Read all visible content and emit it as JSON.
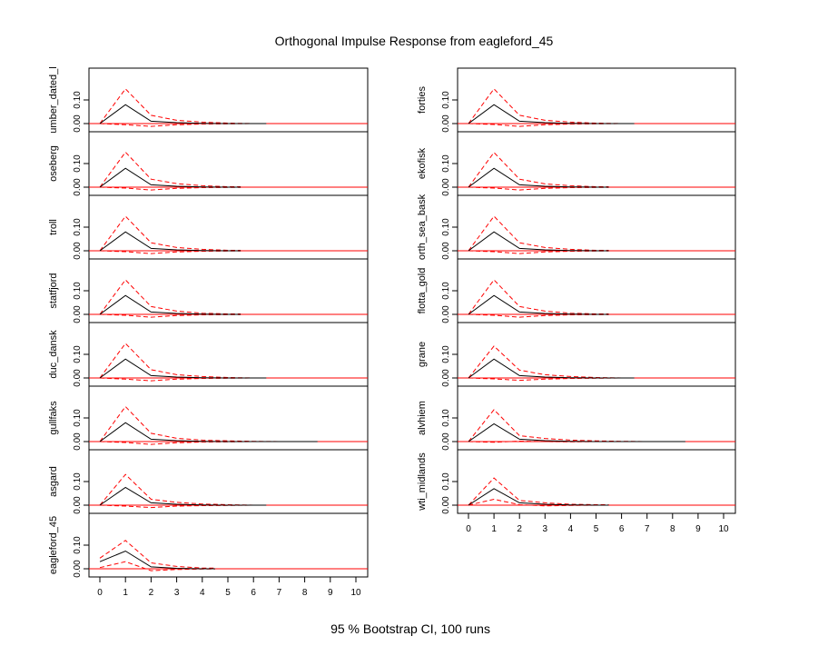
{
  "chart_data": {
    "type": "line",
    "title": "Orthogonal Impulse Response from eagleford_45",
    "xlabel": "95 % Bootstrap CI,  100 runs",
    "x_ticks": [
      "0",
      "1",
      "2",
      "3",
      "4",
      "5",
      "6",
      "7",
      "8",
      "9",
      "10"
    ],
    "y_ticks": [
      "0.00",
      "0.10"
    ],
    "xlim": [
      0,
      10
    ],
    "ylim": [
      -0.02,
      0.165
    ],
    "colors": {
      "response": "#000000",
      "ci": "#ff0000",
      "zero": "#ff0000",
      "axis": "#000000"
    },
    "panels": [
      {
        "name": "umber_dated_l",
        "column": 0,
        "response": [
          0,
          0.08,
          0.01,
          0.004,
          0.001,
          0,
          0,
          0,
          0,
          0,
          0
        ],
        "upper": [
          0,
          0.147,
          0.035,
          0.014,
          0.006,
          0.002,
          0,
          0,
          0,
          0,
          0
        ],
        "lower": [
          0,
          -0.005,
          -0.012,
          -0.005,
          -0.002,
          -0.001,
          0,
          0,
          0,
          0,
          0
        ],
        "extent": 6.5
      },
      {
        "name": "oseberg",
        "column": 0,
        "response": [
          0,
          0.08,
          0.01,
          0.004,
          0.001,
          0,
          0,
          0,
          0,
          0,
          0
        ],
        "upper": [
          0,
          0.148,
          0.034,
          0.015,
          0.006,
          0.002,
          0,
          0,
          0,
          0,
          0
        ],
        "lower": [
          0,
          -0.004,
          -0.012,
          -0.005,
          -0.002,
          -0.001,
          0,
          0,
          0,
          0,
          0
        ],
        "extent": 5.5
      },
      {
        "name": "troll",
        "column": 0,
        "response": [
          0,
          0.08,
          0.01,
          0.004,
          0.001,
          0,
          0,
          0,
          0,
          0,
          0
        ],
        "upper": [
          0,
          0.146,
          0.034,
          0.014,
          0.006,
          0.002,
          0,
          0,
          0,
          0,
          0
        ],
        "lower": [
          0,
          -0.004,
          -0.012,
          -0.005,
          -0.002,
          -0.001,
          0,
          0,
          0,
          0,
          0
        ],
        "extent": 5.5
      },
      {
        "name": "statfjord",
        "column": 0,
        "response": [
          0,
          0.08,
          0.01,
          0.004,
          0.001,
          0,
          0,
          0,
          0,
          0,
          0
        ],
        "upper": [
          0,
          0.146,
          0.033,
          0.014,
          0.005,
          0.002,
          0,
          0,
          0,
          0,
          0
        ],
        "lower": [
          0,
          -0.004,
          -0.012,
          -0.005,
          -0.002,
          -0.001,
          0,
          0,
          0,
          0,
          0
        ],
        "extent": 5.5
      },
      {
        "name": "duc_dansk",
        "column": 0,
        "response": [
          0,
          0.08,
          0.01,
          0.004,
          0.001,
          0,
          0,
          0,
          0,
          0,
          0
        ],
        "upper": [
          0,
          0.146,
          0.035,
          0.014,
          0.006,
          0.002,
          0,
          0,
          0,
          0,
          0
        ],
        "lower": [
          0,
          -0.005,
          -0.012,
          -0.005,
          -0.002,
          -0.001,
          0,
          0,
          0,
          0,
          0
        ],
        "extent": 6.5
      },
      {
        "name": "gullfaks",
        "column": 0,
        "response": [
          0,
          0.08,
          0.01,
          0.004,
          0.001,
          0,
          0,
          0,
          0,
          0,
          0
        ],
        "upper": [
          0,
          0.148,
          0.035,
          0.014,
          0.006,
          0.003,
          0.001,
          0,
          0,
          0,
          0
        ],
        "lower": [
          0,
          -0.004,
          -0.012,
          -0.005,
          -0.002,
          -0.001,
          0,
          0,
          0,
          0,
          0
        ],
        "extent": 8.5
      },
      {
        "name": "asgard",
        "column": 0,
        "response": [
          0,
          0.075,
          0.01,
          0.004,
          0.001,
          0,
          0,
          0,
          0,
          0,
          0
        ],
        "upper": [
          0,
          0.13,
          0.025,
          0.012,
          0.005,
          0.002,
          0,
          0,
          0,
          0,
          0
        ],
        "lower": [
          0,
          -0.004,
          -0.01,
          -0.004,
          -0.002,
          -0.001,
          0,
          0,
          0,
          0,
          0
        ],
        "extent": 6.5
      },
      {
        "name": "eagleford_45",
        "column": 0,
        "response": [
          0.03,
          0.075,
          0.008,
          0.002,
          0,
          0,
          0,
          0,
          0,
          0,
          0
        ],
        "upper": [
          0.045,
          0.12,
          0.025,
          0.01,
          0.003,
          0.001,
          0,
          0,
          0,
          0,
          0
        ],
        "lower": [
          0.005,
          0.03,
          -0.008,
          -0.003,
          -0.001,
          0,
          0,
          0,
          0,
          0,
          0
        ],
        "extent": 4.5
      },
      {
        "name": "forties",
        "column": 1,
        "response": [
          0,
          0.08,
          0.01,
          0.004,
          0.001,
          0,
          0,
          0,
          0,
          0,
          0
        ],
        "upper": [
          0,
          0.147,
          0.035,
          0.014,
          0.006,
          0.002,
          0,
          0,
          0,
          0,
          0
        ],
        "lower": [
          0,
          -0.004,
          -0.012,
          -0.005,
          -0.002,
          -0.001,
          0,
          0,
          0,
          0,
          0
        ],
        "extent": 6.5
      },
      {
        "name": "ekofisk",
        "column": 1,
        "response": [
          0,
          0.08,
          0.01,
          0.004,
          0.001,
          0,
          0,
          0,
          0,
          0,
          0
        ],
        "upper": [
          0,
          0.147,
          0.034,
          0.014,
          0.006,
          0.002,
          0,
          0,
          0,
          0,
          0
        ],
        "lower": [
          0,
          -0.004,
          -0.012,
          -0.005,
          -0.002,
          -0.001,
          0,
          0,
          0,
          0,
          0
        ],
        "extent": 5.5
      },
      {
        "name": "orth_sea_bask",
        "column": 1,
        "response": [
          0,
          0.08,
          0.01,
          0.004,
          0.001,
          0,
          0,
          0,
          0,
          0,
          0
        ],
        "upper": [
          0,
          0.146,
          0.034,
          0.014,
          0.006,
          0.002,
          0,
          0,
          0,
          0,
          0
        ],
        "lower": [
          0,
          -0.004,
          -0.012,
          -0.005,
          -0.002,
          -0.001,
          0,
          0,
          0,
          0,
          0
        ],
        "extent": 5.5
      },
      {
        "name": "flotta_gold",
        "column": 1,
        "response": [
          0,
          0.08,
          0.01,
          0.004,
          0.001,
          0,
          0,
          0,
          0,
          0,
          0
        ],
        "upper": [
          0,
          0.146,
          0.033,
          0.014,
          0.005,
          0.002,
          0,
          0,
          0,
          0,
          0
        ],
        "lower": [
          0,
          -0.004,
          -0.012,
          -0.005,
          -0.002,
          -0.001,
          0,
          0,
          0,
          0,
          0
        ],
        "extent": 5.5
      },
      {
        "name": "grane",
        "column": 1,
        "response": [
          0,
          0.08,
          0.01,
          0.004,
          0.001,
          0,
          0,
          0,
          0,
          0,
          0
        ],
        "upper": [
          0,
          0.135,
          0.033,
          0.014,
          0.006,
          0.002,
          0,
          0,
          0,
          0,
          0
        ],
        "lower": [
          0,
          -0.004,
          -0.01,
          -0.005,
          -0.002,
          -0.001,
          0,
          0,
          0,
          0,
          0
        ],
        "extent": 6.5
      },
      {
        "name": "alvhiem",
        "column": 1,
        "response": [
          0,
          0.075,
          0.01,
          0.004,
          0.001,
          0,
          0,
          0,
          0,
          0,
          0
        ],
        "upper": [
          0,
          0.135,
          0.025,
          0.013,
          0.006,
          0.003,
          0.001,
          0,
          0,
          0,
          0
        ],
        "lower": [
          0,
          -0.003,
          0.002,
          0,
          -0.001,
          0,
          0,
          0,
          0,
          0,
          0
        ],
        "extent": 8.5
      },
      {
        "name": "wti_midlands",
        "column": 1,
        "response": [
          0,
          0.07,
          0.01,
          0.004,
          0.001,
          0,
          0,
          0,
          0,
          0,
          0
        ],
        "upper": [
          0,
          0.115,
          0.02,
          0.01,
          0.004,
          0.002,
          0,
          0,
          0,
          0,
          0
        ],
        "lower": [
          0,
          0.025,
          0.002,
          -0.003,
          -0.001,
          0,
          0,
          0,
          0,
          0,
          0
        ],
        "extent": 5.5
      }
    ]
  }
}
